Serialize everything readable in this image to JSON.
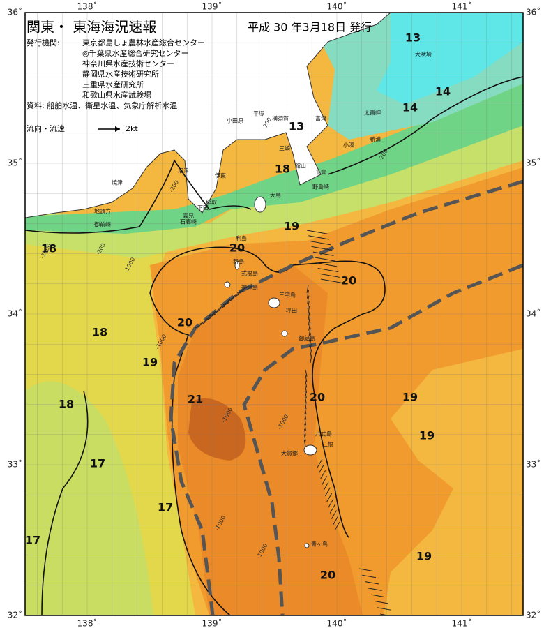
{
  "header": {
    "title": "関東・ 東海海況速報",
    "issued": "平成 30 年3月18日 発行"
  },
  "issuers": {
    "label": "発行機関:",
    "items": [
      "東京都島しょ農林水産総合センター",
      "◎千葉県水産総合研究センター",
      "神奈川県水産技術センター",
      "静岡県水産技術研究所",
      "三重県水産研究所",
      "和歌山県水産試験場"
    ]
  },
  "sources": "資料: 船舶水温、衛星水温、気象庁解析水温",
  "legend": {
    "label": "流向・流速",
    "scale": "2kt"
  },
  "axes": {
    "longitude": [
      "138˚",
      "139˚",
      "140˚",
      "141˚"
    ],
    "latitude": [
      "36˚",
      "35˚",
      "34˚",
      "33˚",
      "32˚"
    ]
  },
  "temperatures": [
    13,
    14,
    14,
    13,
    18,
    19,
    20,
    20,
    20,
    18,
    19,
    18,
    21,
    20,
    19,
    19,
    17,
    17,
    17,
    19,
    20,
    18
  ],
  "places": [
    "犬吠埼",
    "太東岬",
    "勝浦",
    "小湊",
    "館山",
    "千倉",
    "野島崎",
    "小田原",
    "平塚",
    "横須賀",
    "富津",
    "三崎",
    "伊東",
    "沼津",
    "焼津",
    "稲取",
    "下田",
    "雲見",
    "石廊崎",
    "地頭方",
    "御前崎",
    "大島",
    "利島",
    "新島",
    "式根島",
    "神津島",
    "三宅島",
    "坪田",
    "御蔵島",
    "八丈島",
    "三根",
    "大賀郷",
    "青ヶ島"
  ],
  "depths": [
    "-1000",
    "-200",
    "-200",
    "-1000",
    "-200",
    "-1000",
    "-1000",
    "-1000",
    "-1000",
    "-1000",
    "-200"
  ]
}
